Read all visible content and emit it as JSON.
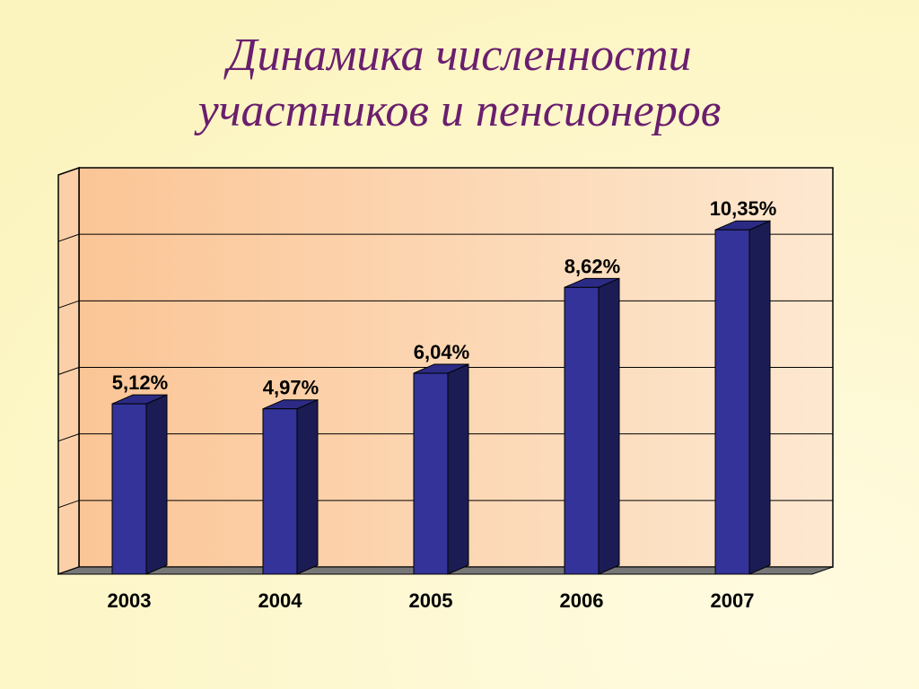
{
  "chart_data": {
    "type": "bar3d",
    "title": "Динамика численности участников и пенсионеров",
    "categories": [
      "2003",
      "2004",
      "2005",
      "2006",
      "2007"
    ],
    "values": [
      5.12,
      4.97,
      6.04,
      8.62,
      10.35
    ],
    "value_labels": [
      "5,12%",
      "4,97%",
      "6,04%",
      "8,62%",
      "10,35%"
    ],
    "color": "#333399",
    "ylim": [
      0,
      12
    ],
    "yticks": [
      0,
      2,
      4,
      6,
      8,
      10,
      12
    ],
    "grid": true
  }
}
